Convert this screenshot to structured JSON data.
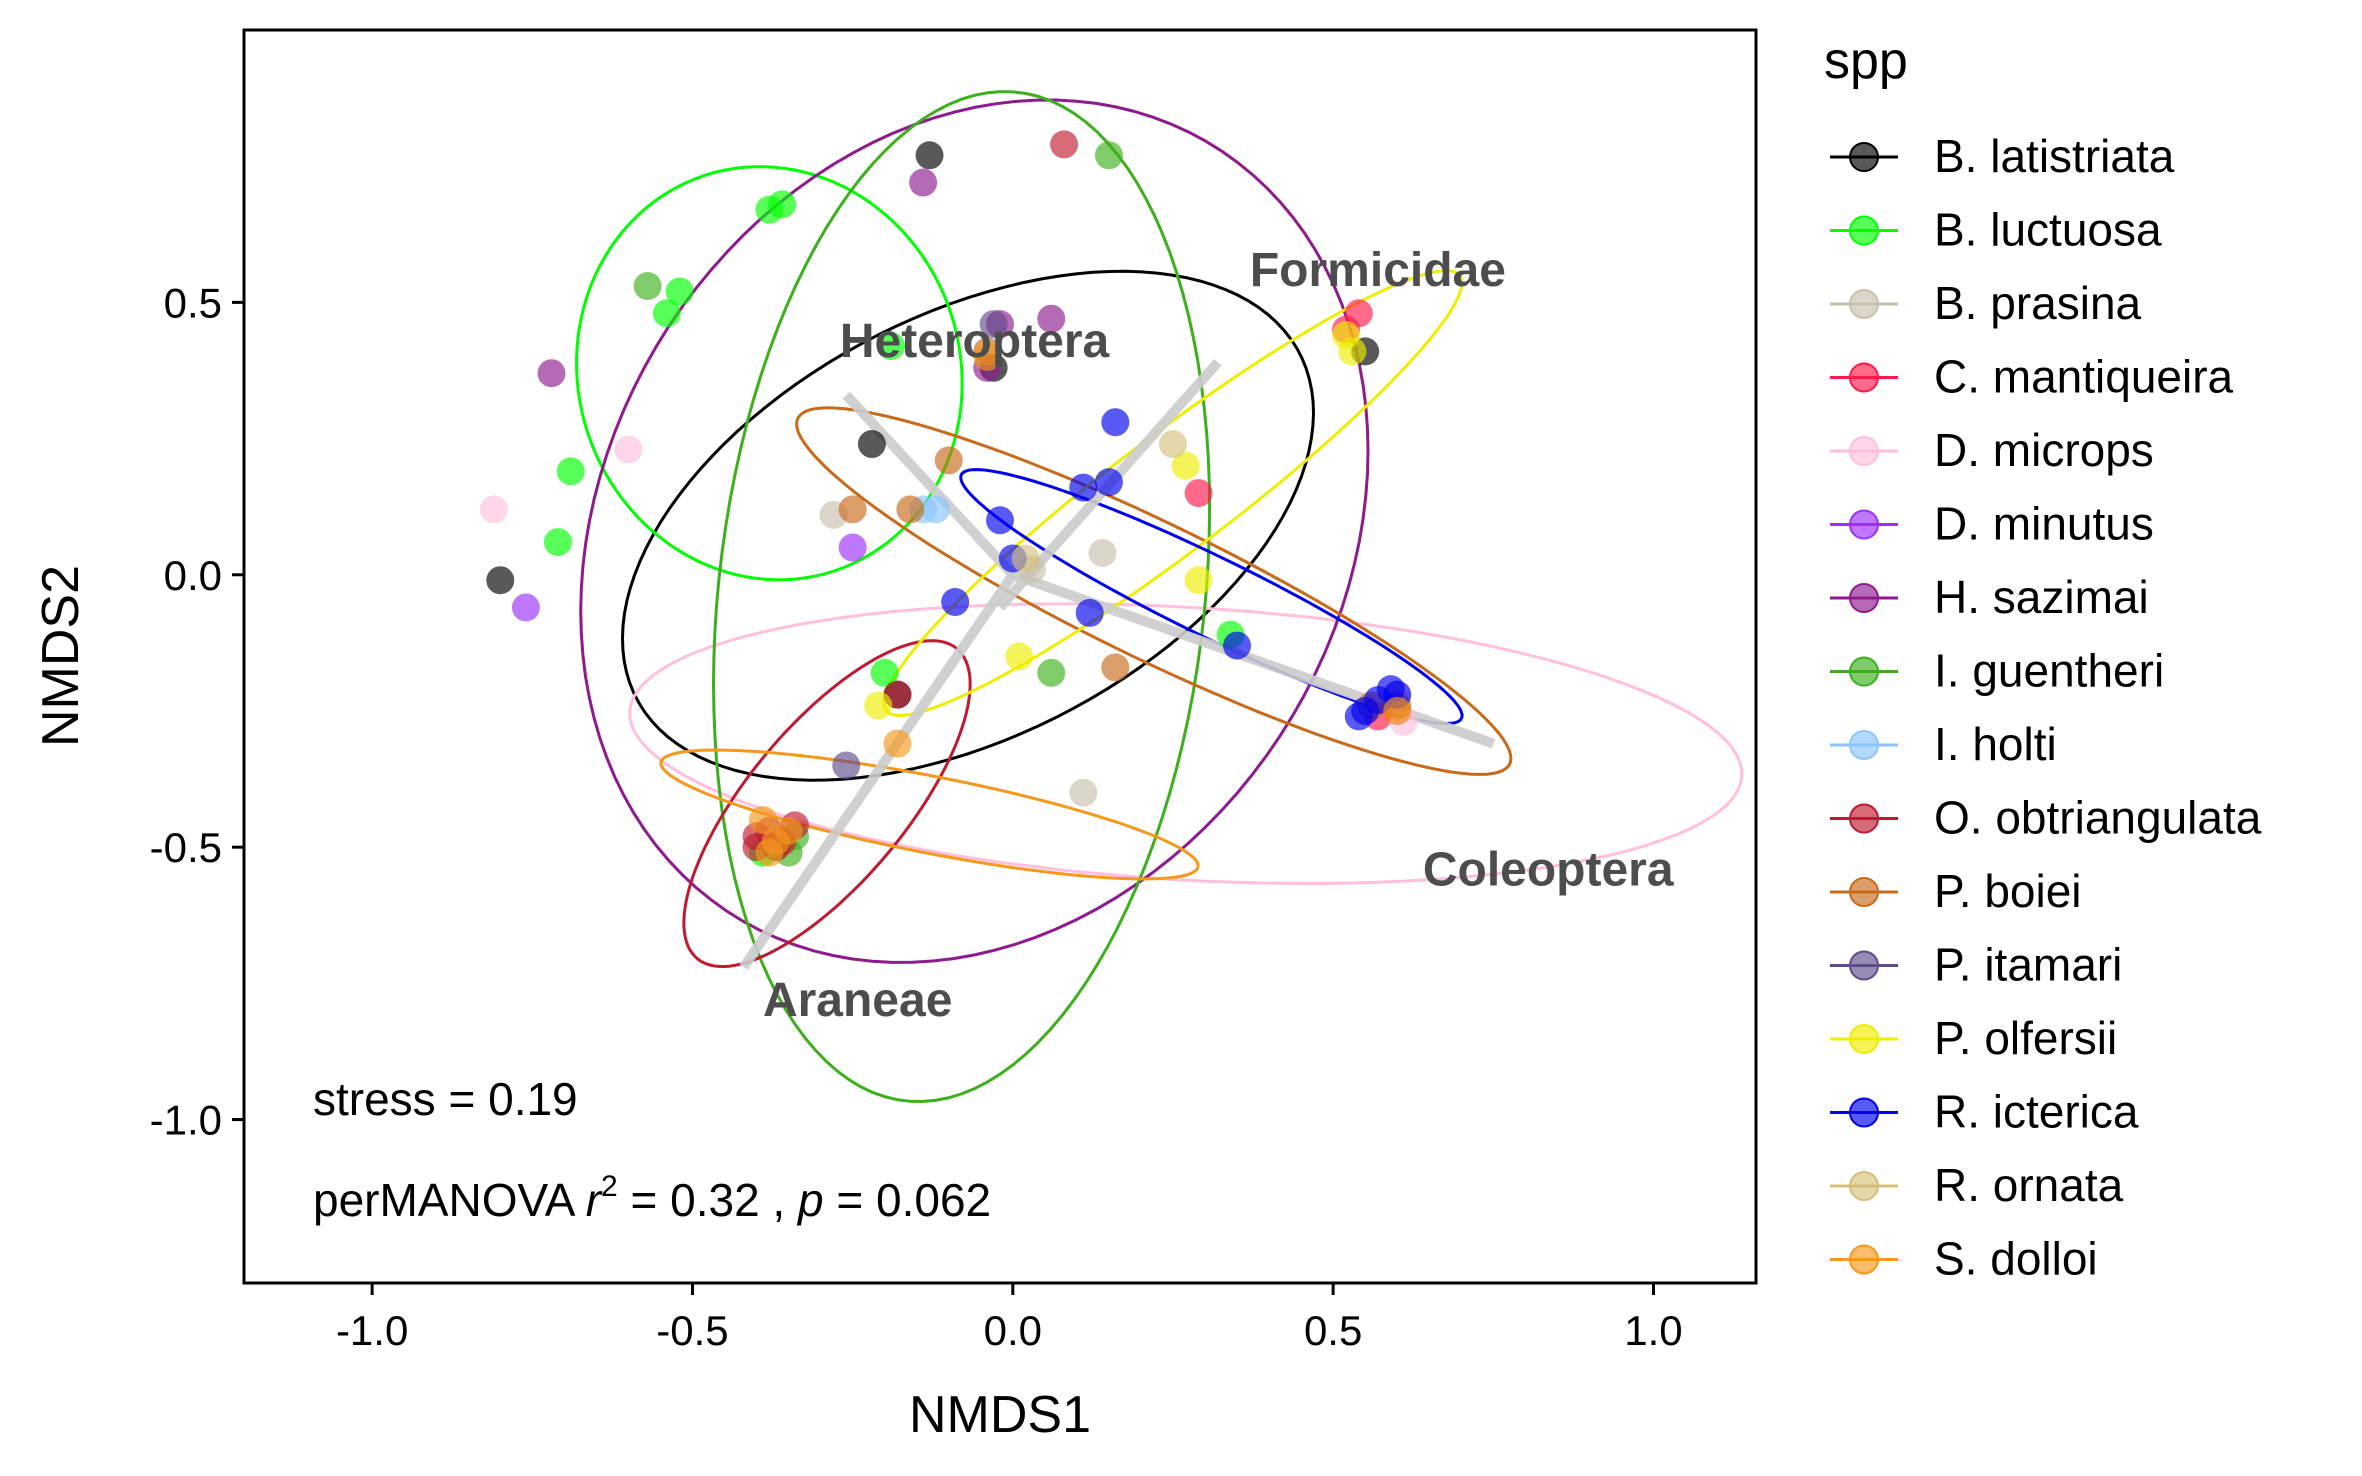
{
  "chart_data": {
    "type": "scatter",
    "title": "",
    "xlabel": "NMDS1",
    "ylabel": "NMDS2",
    "xlim": [
      -1.2,
      1.16
    ],
    "ylim": [
      -1.3,
      1.0
    ],
    "x_ticks": [
      -1.0,
      -0.5,
      0.0,
      0.5,
      1.0
    ],
    "x_tick_labels": [
      "-1.0",
      "-0.5",
      "0.0",
      "0.5",
      "1.0"
    ],
    "y_ticks": [
      -1.0,
      -0.5,
      0.0,
      0.5
    ],
    "y_tick_labels": [
      "-1.0",
      "-0.5",
      "0.0",
      "0.5"
    ],
    "grid": false,
    "legend": {
      "title": "spp",
      "placement": "right"
    },
    "annotations": {
      "stress": "stress = 0.19",
      "permanova_prefix": "perMANOVA ",
      "r_symbol": "r",
      "r_exp": "2",
      "r_value": " = 0.32 , ",
      "p_symbol": "p",
      "p_value": " =  0.062"
    },
    "vectors": [
      {
        "label": "Formicidae",
        "x1": -0.02,
        "y1": -0.06,
        "x2": 0.32,
        "y2": 0.39,
        "label_x": 0.37,
        "label_y": 0.53
      },
      {
        "label": "Heteroptera",
        "x1": 0.0,
        "y1": 0.0,
        "x2": -0.26,
        "y2": 0.33,
        "label_x": -0.27,
        "label_y": 0.4
      },
      {
        "label": "Coleoptera",
        "x1": 0.0,
        "y1": 0.0,
        "x2": 0.75,
        "y2": -0.31,
        "label_x": 0.64,
        "label_y": -0.57
      },
      {
        "label": "Araneae",
        "x1": 0.0,
        "y1": 0.0,
        "x2": -0.42,
        "y2": -0.72,
        "label_x": -0.39,
        "label_y": -0.81
      }
    ],
    "series": [
      {
        "name": "B. latistriata",
        "color": "#000000",
        "points": [
          [
            -0.8,
            -0.01
          ],
          [
            -0.13,
            0.77
          ],
          [
            -0.22,
            0.24
          ],
          [
            -0.03,
            0.38
          ],
          [
            0.55,
            0.41
          ],
          [
            -0.18,
            -0.22
          ]
        ],
        "ellipse": {
          "cx": -0.07,
          "cy": 0.09,
          "rx": 0.61,
          "ry": 0.37,
          "angle": 36
        }
      },
      {
        "name": "B. luctuosa",
        "color": "#00ff00",
        "points": [
          [
            -0.38,
            0.67
          ],
          [
            -0.36,
            0.68
          ],
          [
            -0.52,
            0.52
          ],
          [
            -0.54,
            0.48
          ],
          [
            -0.19,
            0.42
          ],
          [
            -0.69,
            0.19
          ],
          [
            -0.71,
            0.06
          ],
          [
            -0.2,
            -0.18
          ],
          [
            0.34,
            -0.11
          ],
          [
            -0.37,
            -0.5
          ],
          [
            -0.39,
            -0.51
          ]
        ],
        "ellipse": {
          "cx": -0.38,
          "cy": 0.37,
          "rx": 0.38,
          "ry": 0.3,
          "angle": -84
        }
      },
      {
        "name": "B. prasina",
        "color": "#c9bfad",
        "points": [
          [
            0.14,
            0.04
          ],
          [
            0.11,
            -0.4
          ],
          [
            0.03,
            0.01
          ],
          [
            -0.28,
            0.11
          ]
        ],
        "ellipse": null
      },
      {
        "name": "C. mantiqueira",
        "color": "#ff1a4b",
        "points": [
          [
            0.54,
            0.48
          ],
          [
            0.52,
            0.45
          ],
          [
            0.29,
            0.15
          ],
          [
            0.57,
            -0.26
          ],
          [
            0.6,
            -0.25
          ]
        ],
        "ellipse": null
      },
      {
        "name": "D. microps",
        "color": "#ffbfdd",
        "points": [
          [
            -0.81,
            0.12
          ],
          [
            -0.6,
            0.23
          ],
          [
            0.6,
            -0.22
          ],
          [
            0.61,
            -0.27
          ]
        ],
        "ellipse": {
          "cx": 0.27,
          "cy": -0.31,
          "rx": 0.87,
          "ry": 0.25,
          "angle": -4
        }
      },
      {
        "name": "D. minutus",
        "color": "#9b30ff",
        "points": [
          [
            -0.76,
            -0.06
          ],
          [
            -0.25,
            0.05
          ]
        ],
        "ellipse": null
      },
      {
        "name": "H. sazimai",
        "color": "#8e1a8e",
        "points": [
          [
            -0.14,
            0.72
          ],
          [
            0.06,
            0.47
          ],
          [
            -0.72,
            0.37
          ],
          [
            -0.02,
            0.46
          ],
          [
            -0.04,
            0.38
          ]
        ],
        "ellipse": {
          "cx": -0.06,
          "cy": 0.08,
          "rx": 0.81,
          "ry": 0.59,
          "angle": 72
        }
      },
      {
        "name": "I. guentheri",
        "color": "#3cb01c",
        "points": [
          [
            -0.57,
            0.53
          ],
          [
            0.15,
            0.77
          ],
          [
            0.06,
            -0.18
          ],
          [
            -0.35,
            -0.51
          ],
          [
            -0.34,
            -0.48
          ]
        ],
        "ellipse": {
          "cx": -0.08,
          "cy": -0.04,
          "rx": 0.93,
          "ry": 0.38,
          "angle": 85
        }
      },
      {
        "name": "I. holti",
        "color": "#8ac4ff",
        "points": [
          [
            -0.14,
            0.12
          ],
          [
            -0.12,
            0.12
          ]
        ],
        "ellipse": null
      },
      {
        "name": "O. obtriangulata",
        "color": "#c01a30",
        "points": [
          [
            0.08,
            0.79
          ],
          [
            -0.4,
            -0.48
          ],
          [
            -0.38,
            -0.47
          ],
          [
            -0.36,
            -0.49
          ],
          [
            -0.34,
            -0.46
          ],
          [
            -0.37,
            -0.5
          ],
          [
            -0.4,
            -0.5
          ],
          [
            -0.18,
            -0.22
          ]
        ],
        "ellipse": {
          "cx": -0.29,
          "cy": -0.42,
          "rx": 0.35,
          "ry": 0.13,
          "angle": 56
        }
      },
      {
        "name": "P. boiei",
        "color": "#c86a1a",
        "points": [
          [
            -0.1,
            0.21
          ],
          [
            -0.25,
            0.12
          ],
          [
            -0.16,
            0.12
          ],
          [
            0.16,
            -0.17
          ],
          [
            -0.04,
            0.41
          ],
          [
            0.56,
            -0.24
          ],
          [
            0.6,
            -0.24
          ]
        ],
        "ellipse": {
          "cx": 0.22,
          "cy": -0.03,
          "rx": 0.64,
          "ry": 0.12,
          "angle": -30
        }
      },
      {
        "name": "P. itamari",
        "color": "#5f4b8b",
        "points": [
          [
            -0.03,
            0.46
          ],
          [
            -0.26,
            -0.35
          ]
        ],
        "ellipse": null
      },
      {
        "name": "P. olfersii",
        "color": "#eeee00",
        "points": [
          [
            0.52,
            0.44
          ],
          [
            0.53,
            0.41
          ],
          [
            0.27,
            0.2
          ],
          [
            0.29,
            -0.01
          ],
          [
            0.01,
            -0.15
          ],
          [
            -0.21,
            -0.24
          ]
        ],
        "ellipse": {
          "cx": 0.25,
          "cy": 0.15,
          "rx": 0.6,
          "ry": 0.1,
          "angle": 42
        }
      },
      {
        "name": "R. icterica",
        "color": "#0000ee",
        "points": [
          [
            0.16,
            0.28
          ],
          [
            0.15,
            0.17
          ],
          [
            0.11,
            0.16
          ],
          [
            -0.02,
            0.1
          ],
          [
            0.0,
            0.03
          ],
          [
            -0.09,
            -0.05
          ],
          [
            0.12,
            -0.07
          ],
          [
            0.35,
            -0.13
          ],
          [
            0.59,
            -0.21
          ],
          [
            0.6,
            -0.22
          ],
          [
            0.57,
            -0.23
          ],
          [
            0.55,
            -0.25
          ],
          [
            0.54,
            -0.26
          ]
        ],
        "ellipse": {
          "cx": 0.31,
          "cy": -0.04,
          "rx": 0.45,
          "ry": 0.07,
          "angle": -30
        }
      },
      {
        "name": "R. ornata",
        "color": "#d4c07a",
        "points": [
          [
            0.25,
            0.24
          ],
          [
            0.02,
            0.03
          ]
        ],
        "ellipse": null
      },
      {
        "name": "S. dolloi",
        "color": "#f5981c",
        "points": [
          [
            -0.39,
            -0.45
          ],
          [
            -0.37,
            -0.49
          ],
          [
            -0.35,
            -0.47
          ],
          [
            -0.38,
            -0.51
          ],
          [
            -0.18,
            -0.31
          ],
          [
            -0.04,
            0.4
          ],
          [
            0.6,
            -0.25
          ]
        ],
        "ellipse": {
          "cx": -0.13,
          "cy": -0.44,
          "rx": 0.43,
          "ry": 0.07,
          "angle": -13
        }
      }
    ]
  }
}
